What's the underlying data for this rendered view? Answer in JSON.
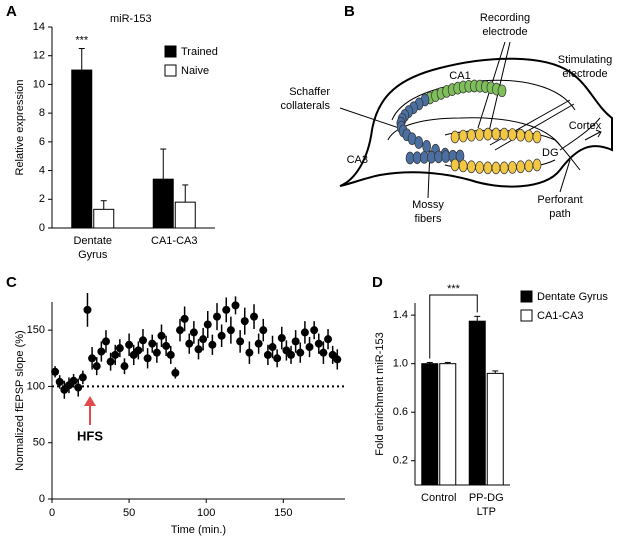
{
  "chart_data": [
    {
      "type": "bar",
      "panel": "A",
      "title": "miR-153",
      "ylabel": "Relative expression",
      "categories": [
        "Dentate Gyrus",
        "CA1-CA3"
      ],
      "series": [
        {
          "name": "Trained",
          "color": "#000000",
          "values": [
            11.0,
            3.4
          ],
          "errors": [
            1.5,
            2.1
          ]
        },
        {
          "name": "Naive",
          "color": "#ffffff",
          "values": [
            1.3,
            1.8
          ],
          "errors": [
            0.6,
            1.2
          ]
        }
      ],
      "annotation": "***",
      "ylim": [
        0,
        14
      ],
      "yticks": [
        0,
        2,
        4,
        6,
        8,
        10,
        12,
        14
      ]
    },
    {
      "type": "scatter",
      "panel": "C",
      "xlabel": "Time (min.)",
      "ylabel": "Normalized fEPSP slope (%)",
      "annotation": "HFS",
      "reference_line": 100,
      "x": [
        2,
        5,
        8,
        11,
        14,
        17,
        20,
        23,
        26,
        29,
        32,
        35,
        38,
        41,
        44,
        47,
        50,
        53,
        56,
        59,
        62,
        65,
        68,
        71,
        74,
        77,
        80,
        83,
        86,
        89,
        92,
        95,
        98,
        101,
        104,
        107,
        110,
        113,
        116,
        119,
        122,
        125,
        128,
        131,
        134,
        137,
        140,
        143,
        146,
        149,
        152,
        155,
        158,
        161,
        164,
        167,
        170,
        173,
        176,
        179,
        182,
        185
      ],
      "values": [
        113,
        104,
        97,
        101,
        105,
        99,
        108,
        168,
        125,
        118,
        131,
        140,
        122,
        128,
        134,
        118,
        137,
        128,
        132,
        141,
        125,
        138,
        130,
        145,
        136,
        128,
        112,
        150,
        160,
        138,
        148,
        133,
        142,
        155,
        137,
        162,
        145,
        168,
        150,
        172,
        140,
        158,
        130,
        162,
        138,
        150,
        128,
        135,
        125,
        143,
        132,
        128,
        140,
        130,
        148,
        135,
        150,
        138,
        130,
        142,
        128,
        124
      ],
      "errors": [
        5,
        6,
        8,
        7,
        6,
        8,
        6,
        15,
        10,
        8,
        9,
        10,
        8,
        9,
        8,
        7,
        10,
        9,
        8,
        10,
        9,
        8,
        9,
        10,
        9,
        8,
        5,
        10,
        11,
        9,
        10,
        9,
        10,
        12,
        9,
        12,
        10,
        11,
        12,
        8,
        10,
        12,
        10,
        11,
        9,
        10,
        9,
        10,
        8,
        10,
        9,
        8,
        10,
        9,
        10,
        9,
        8,
        9,
        10,
        9,
        8,
        9
      ],
      "xlim": [
        0,
        190
      ],
      "xticks": [
        0,
        50,
        100,
        150
      ],
      "ylim": [
        0,
        175
      ],
      "yticks": [
        0,
        50,
        100,
        150
      ]
    },
    {
      "type": "bar",
      "panel": "D",
      "ylabel": "Fold enrichment miR-153",
      "categories": [
        "Control",
        "PP-DG LTP"
      ],
      "series": [
        {
          "name": "Dentate Gyrus",
          "color": "#000000",
          "values": [
            1.0,
            1.35
          ],
          "errors": [
            0.01,
            0.04
          ]
        },
        {
          "name": "CA1-CA3",
          "color": "#ffffff",
          "values": [
            1.0,
            0.92
          ],
          "errors": [
            0.01,
            0.02
          ]
        }
      ],
      "annotation": "***",
      "ylim": [
        0,
        1.5
      ],
      "yticks": [
        0.2,
        0.6,
        {
          "value": 1.0,
          "label": "1.0"
        },
        1.4
      ]
    }
  ],
  "diagram": {
    "panel": "B",
    "labels": {
      "recording": "Recording electrode",
      "stimulating": "Stimulating electrode",
      "schaffer": "Schaffer collaterals",
      "ca1": "CA1",
      "cortex": "Cortex",
      "ca3": "CA3",
      "dg": "DG",
      "mossy": "Mossy fibers",
      "perforant": "Perforant path"
    }
  }
}
